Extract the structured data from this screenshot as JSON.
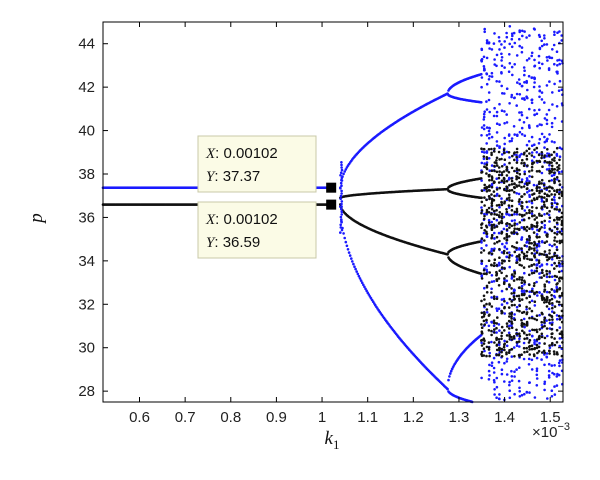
{
  "chart_data": {
    "type": "scatter",
    "title": "",
    "xlabel": "k",
    "xlabel_sub": "1",
    "ylabel": "p",
    "x_multiplier": "×10",
    "x_multiplier_exp": "−3",
    "xlim": [
      0.00052,
      0.001528
    ],
    "ylim": [
      27.5,
      45.0
    ],
    "xticks": [
      0.0006,
      0.0007,
      0.0008,
      0.0009,
      0.001,
      0.0011,
      0.0012,
      0.0013,
      0.0014,
      0.0015
    ],
    "xtick_labels": [
      "0.6",
      "0.7",
      "0.8",
      "0.9",
      "1",
      "1.1",
      "1.2",
      "1.3",
      "1.4",
      "1.5"
    ],
    "yticks": [
      28,
      30,
      32,
      34,
      36,
      38,
      40,
      42,
      44
    ],
    "ytick_labels": [
      "28",
      "30",
      "32",
      "34",
      "36",
      "38",
      "40",
      "42",
      "44"
    ],
    "grid": false,
    "series": [
      {
        "color": "#1a1aff",
        "description": "bifurcation points, upper branch (period-2 and beyond)",
        "segments": [
          {
            "x": [
              0.00052,
              0.00102
            ],
            "y": 37.37
          },
          {
            "x_range": [
              0.00104,
              0.001275
            ],
            "top_start": 37.37,
            "top_end": 41.7,
            "bottom_start": 36.5,
            "bottom_end": 28.1
          },
          {
            "chaotic_range": [
              0.00135,
              0.001528
            ],
            "y_range": [
              27.5,
              44.8
            ]
          }
        ]
      },
      {
        "color": "#111111",
        "description": "bifurcation points, lower branch",
        "segments": [
          {
            "x": [
              0.00052,
              0.00102
            ],
            "y": 36.59
          },
          {
            "x_range": [
              0.00104,
              0.001275
            ],
            "top_start": 36.9,
            "top_end": 37.3,
            "bottom_start": 36.6,
            "bottom_end": 34.3
          },
          {
            "chaotic_range": [
              0.00135,
              0.001528
            ],
            "y_range": [
              29.5,
              39.2
            ]
          }
        ]
      }
    ],
    "annotations": [
      {
        "x_label": "X",
        "x_value": "0.00102",
        "y_label": "Y",
        "y_value": "37.37",
        "x": 0.00102,
        "y": 37.37
      },
      {
        "x_label": "X",
        "x_value": "0.00102",
        "y_label": "Y",
        "y_value": "36.59",
        "x": 0.00102,
        "y": 36.59
      }
    ]
  },
  "colors": {
    "blue": "#1a1aff",
    "black": "#111111",
    "annotation_fill": "#fbfbe6",
    "annotation_border": "#c8c8a8"
  }
}
